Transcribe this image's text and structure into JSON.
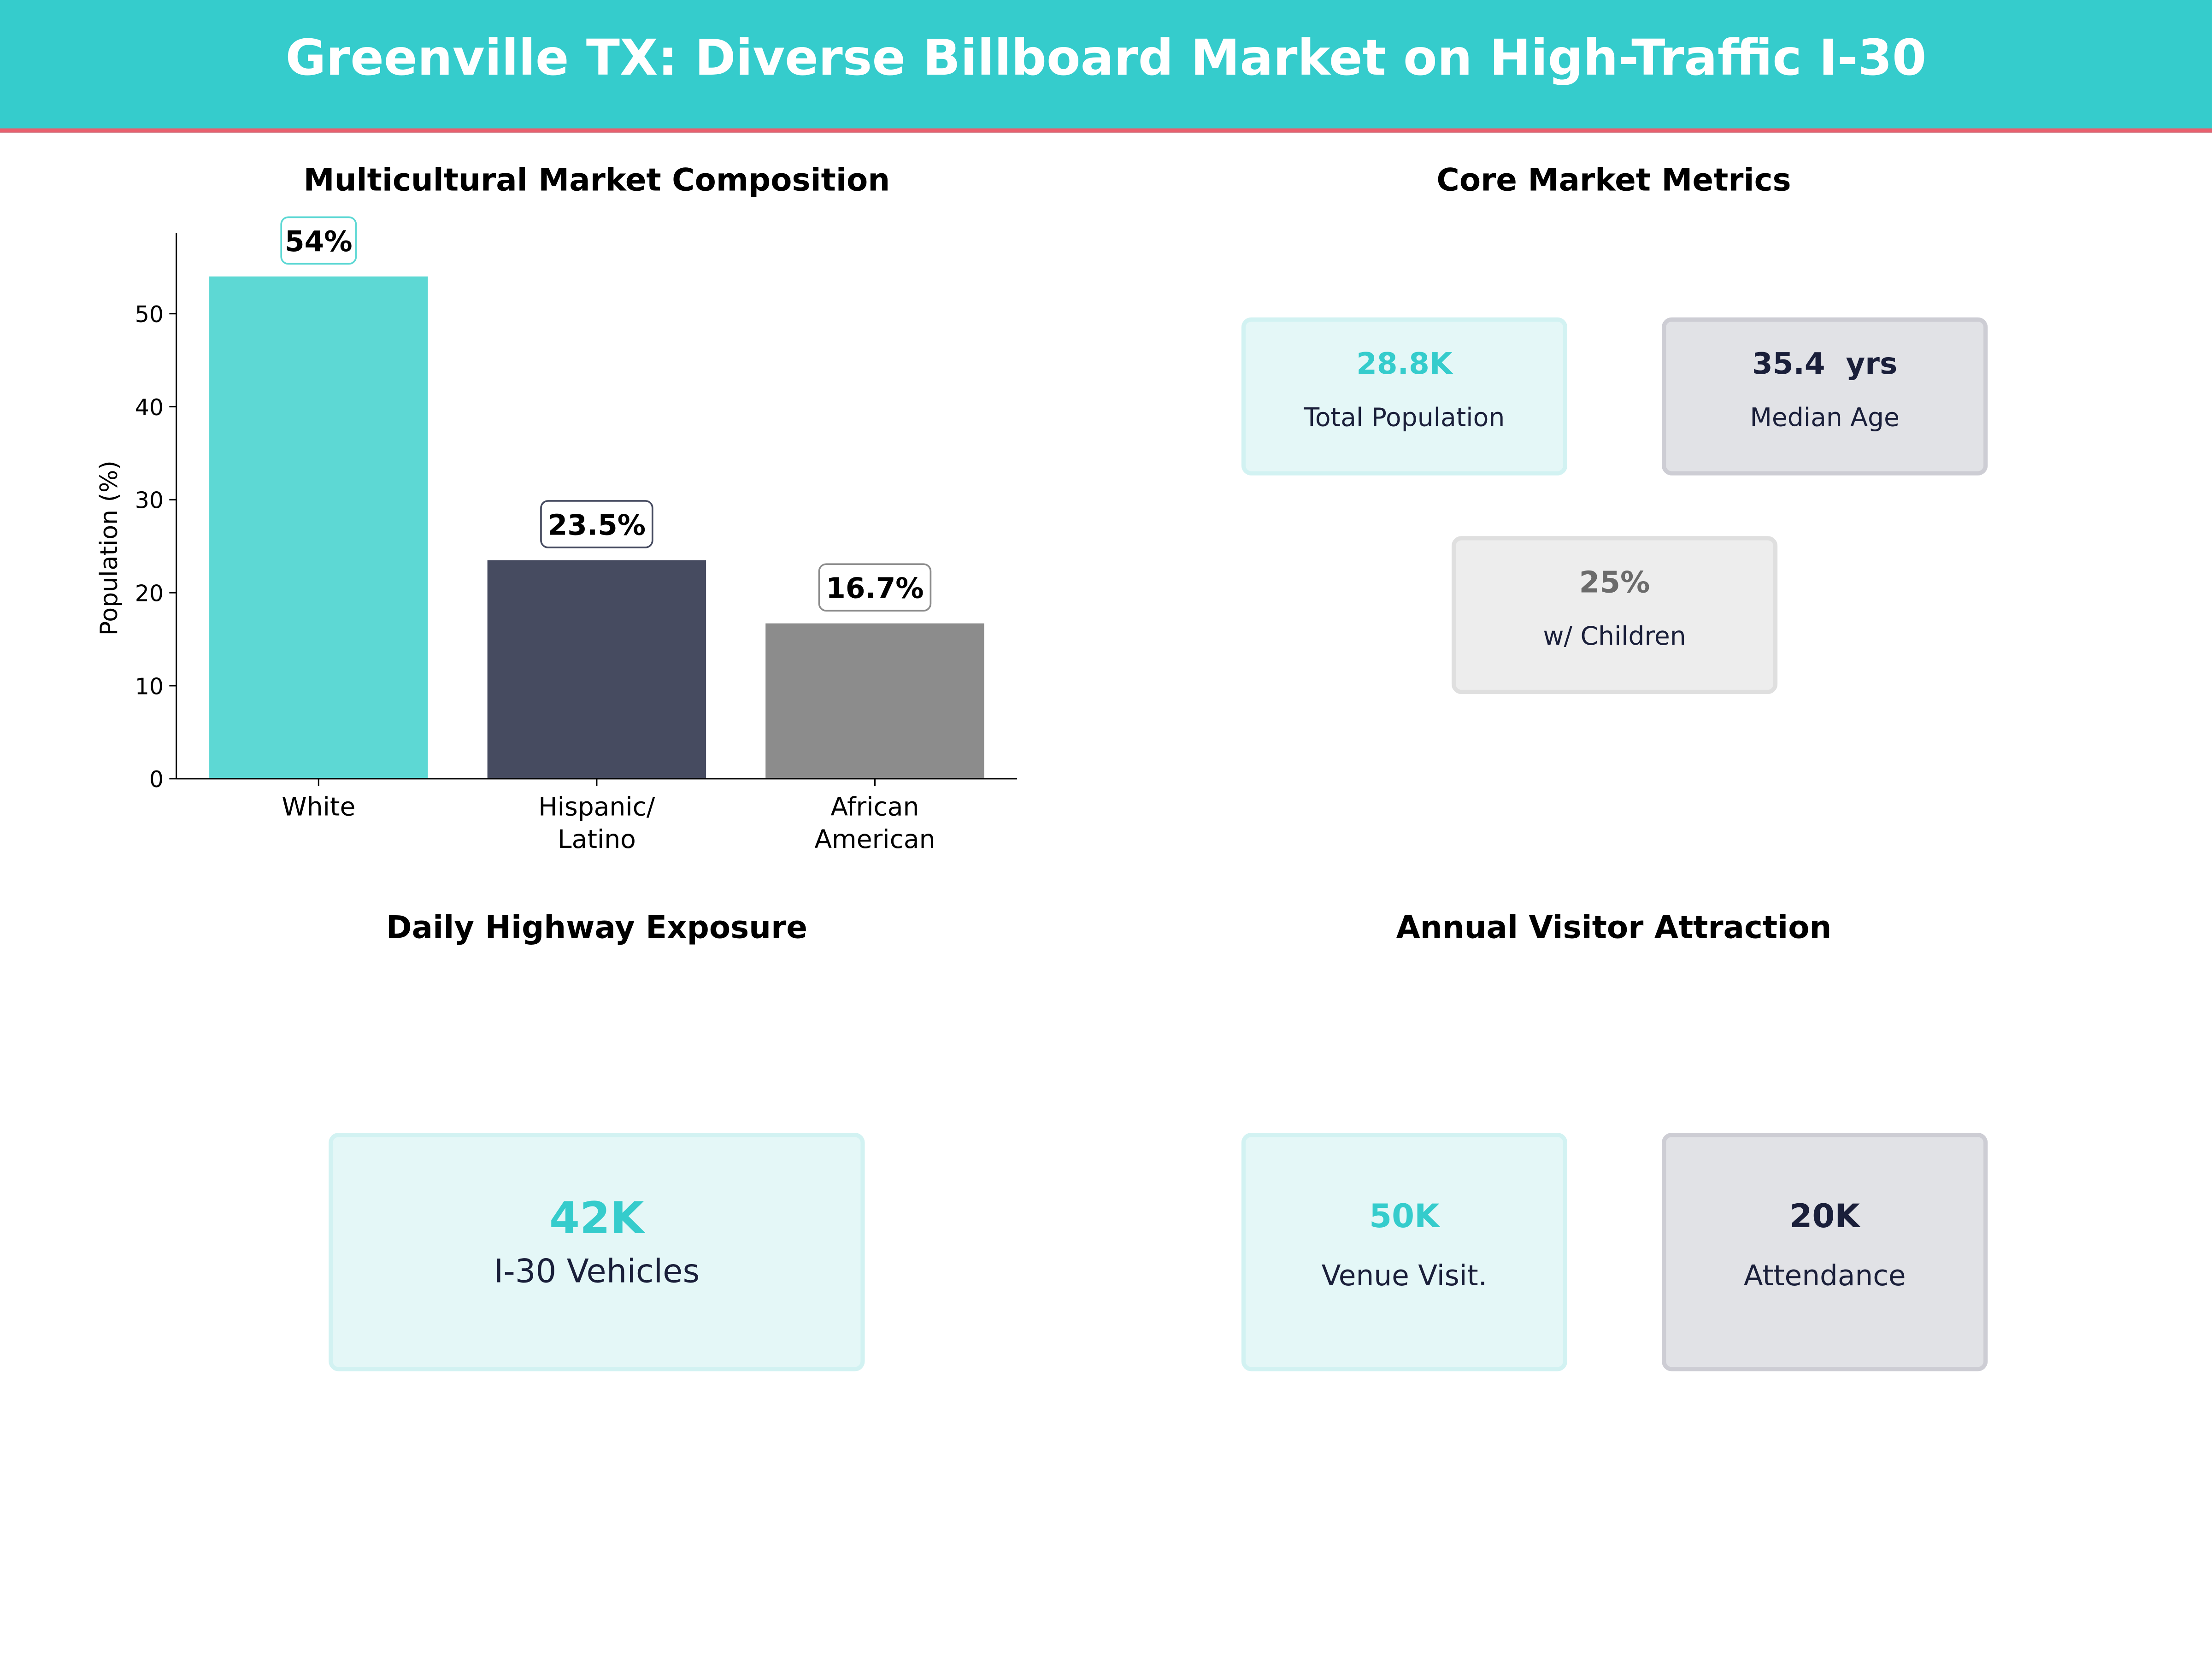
{
  "header": {
    "title": "Greenville TX: Diverse Billboard Market on High-Traffic I-30"
  },
  "colors": {
    "teal": "#35CCCC",
    "navy": "#464B60",
    "grey": "#8C8C8C",
    "accent_line": "#E8606E",
    "dark_text": "#1A1F3A"
  },
  "chart_data": {
    "type": "bar",
    "title": "Multicultural Market Composition",
    "categories": [
      "White",
      "Hispanic/\nLatino",
      "African\nAmerican"
    ],
    "category_lines": [
      [
        "White"
      ],
      [
        "Hispanic/",
        "Latino"
      ],
      [
        "African",
        "American"
      ]
    ],
    "values": [
      54,
      23.5,
      16.7
    ],
    "data_labels": [
      "54%",
      "23.5%",
      "16.7%"
    ],
    "bar_colors": [
      "#5DD8D4",
      "#464B60",
      "#8C8C8C"
    ],
    "xlabel": "",
    "ylabel": "Population (%)",
    "ylim": [
      0,
      58.7
    ],
    "yticks": [
      0,
      10,
      20,
      30,
      40,
      50
    ],
    "grid": false
  },
  "core_metrics": {
    "title": "Core Market Metrics",
    "cards": [
      {
        "value": "28.8K",
        "label": "Total Population",
        "style": "teal",
        "value_color": "#35CCCC"
      },
      {
        "value": "35.4  yrs",
        "label": "Median Age",
        "style": "navy",
        "value_color": "#1A1F3A"
      },
      {
        "value": "25%",
        "label": "w/ Children",
        "style": "grey",
        "value_color": "#6B6B6B"
      }
    ]
  },
  "highway": {
    "title": "Daily Highway Exposure",
    "card": {
      "value": "42K",
      "label": "I-30 Vehicles",
      "value_color": "#35CCCC"
    }
  },
  "visitors": {
    "title": "Annual Visitor Attraction",
    "cards": [
      {
        "value": "50K",
        "label": "Venue Visit.",
        "value_color": "#35CCCC"
      },
      {
        "value": "20K",
        "label": "Attendance",
        "value_color": "#1A1F3A"
      }
    ]
  }
}
